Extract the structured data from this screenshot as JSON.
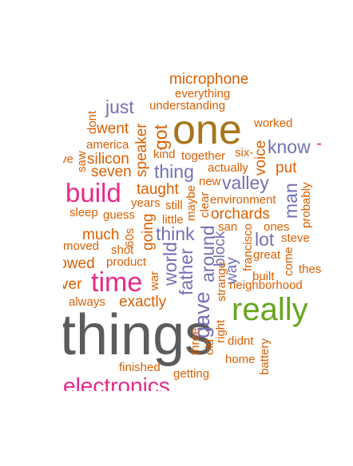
{
  "words": {
    "things": "things",
    "electronics": "electronics",
    "one": "one",
    "really": "really",
    "build": "build",
    "time": "time",
    "microphone": "microphone",
    "everything": "everything",
    "understanding": "understanding",
    "just": "just",
    "went": "went",
    "america": "america",
    "silicon": "silicon",
    "seven": "seven",
    "kind": "kind",
    "together": "together",
    "thing": "thing",
    "actually": "actually",
    "six": "six-",
    "worked": "worked",
    "know": "know",
    "put": "put",
    "valley": "valley",
    "new": "new",
    "taught": "taught",
    "years": "years",
    "still": "still",
    "environment": "environment",
    "orchards": "orchards",
    "guess": "guess",
    "sleep": "sleep",
    "little": "little",
    "san": "san",
    "ones": "ones",
    "think": "think",
    "much": "much",
    "lot": "lot",
    "steve": "steve",
    "moved": "moved",
    "shot": "shot",
    "product": "product",
    "great": "great",
    "built": "built",
    "these": "these",
    "lowed": "lowed",
    "neighborhood": "neighborhood",
    "ever": "ver",
    "always": "always",
    "exactly": "exactly",
    "didnt": "didnt",
    "home": "home",
    "finished": "finished",
    "getting": "getting",
    "ve": "ve",
    "dont": "dont",
    "saw": "saw",
    "got": "got",
    "speaker": "speaker",
    "voice": "voice",
    "man": "man",
    "probably": "probably",
    "maybe": "maybe",
    "clear": "clear",
    "going": "going",
    "sixties": "60s",
    "world": "world",
    "father": "father",
    "gave": "gave",
    "around": "around",
    "block": "block",
    "way": "way",
    "francisco": "francisco",
    "come": "come",
    "war": "war",
    "strange": "strange",
    "three": "three",
    "old": "old",
    "right": "right",
    "battery": "battery"
  },
  "palette": {
    "orange": "#d95f02",
    "purple": "#7570b3",
    "magenta": "#e7298a",
    "brown": "#a6761d",
    "green": "#66a61e",
    "gray": "#5c5c5c"
  }
}
